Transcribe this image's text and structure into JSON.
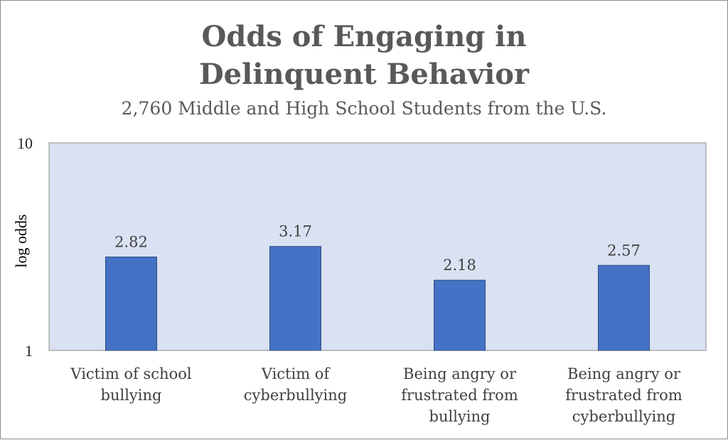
{
  "chart_data": {
    "type": "bar",
    "title": [
      "Odds of Engaging in",
      "Delinquent Behavior"
    ],
    "subtitle": "2,760 Middle and High School Students from the U.S.",
    "ylabel": "log odds",
    "xlabel": "",
    "yscale": "log",
    "ylim": [
      1,
      10
    ],
    "yticks": [
      "1",
      "10"
    ],
    "categories": [
      [
        "Victim of school",
        "bullying"
      ],
      [
        "Victim of",
        "cyberbullying"
      ],
      [
        "Being angry or",
        "frustrated from",
        "bullying"
      ],
      [
        "Being angry or",
        "frustrated from",
        "cyberbullying"
      ]
    ],
    "values": [
      2.82,
      3.17,
      2.18,
      2.57
    ],
    "value_labels": [
      "2.82",
      "3.17",
      "2.18",
      "2.57"
    ],
    "grid": false,
    "legend": "none",
    "colors": {
      "bar": "#4472c4",
      "bar_edge": "#2f4f80",
      "plot_background": "#d9e1f2",
      "title": "#595959"
    }
  }
}
